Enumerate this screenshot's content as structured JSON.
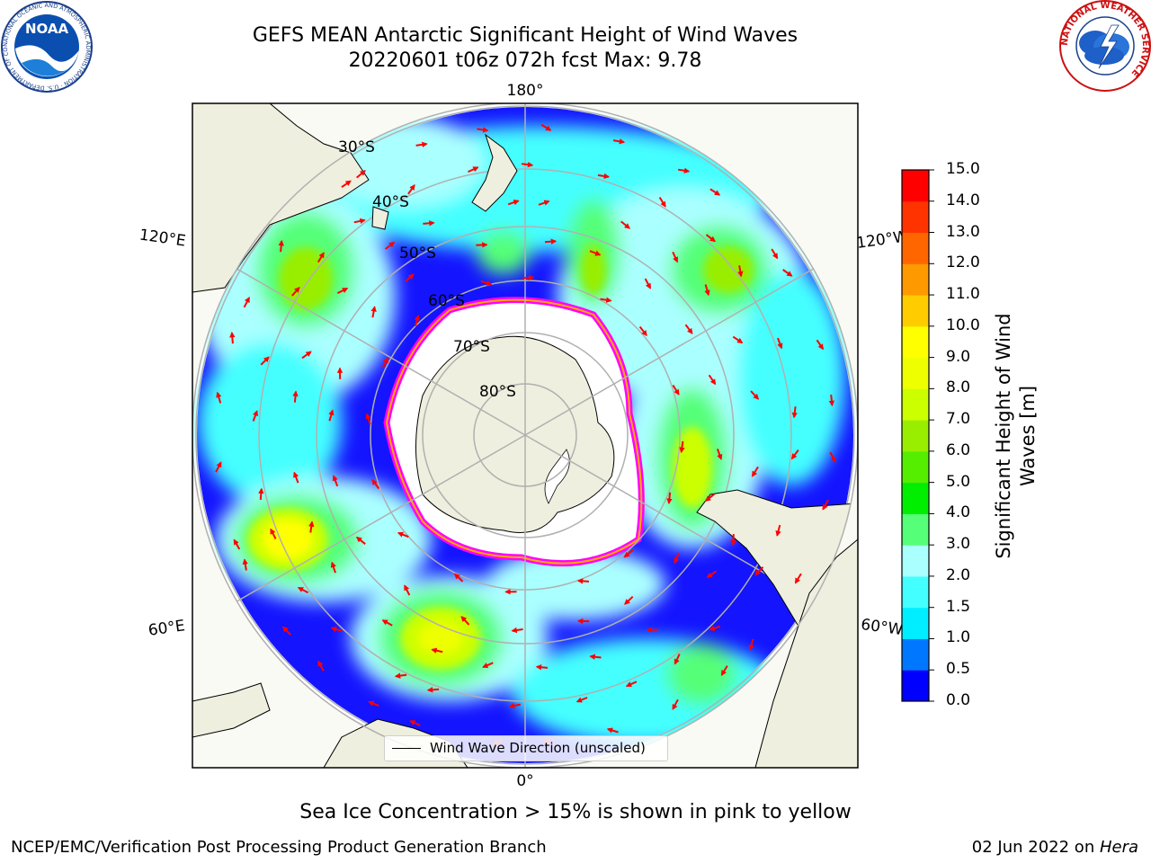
{
  "title": {
    "line1": "GEFS MEAN Antarctic Significant Height of Wind Waves",
    "line2": "20220601 t06z 072h fcst   Max: 9.78"
  },
  "logos": {
    "noaa": {
      "text": "NOAA",
      "ring_text": "NATIONAL OCEANIC AND ATMOSPHERIC ADMINISTRATION · U.S. DEPARTMENT OF COMMERCE",
      "icon": "noaa-logo"
    },
    "nws": {
      "ring_text": "NATIONAL WEATHER SERVICE",
      "icon": "nws-logo"
    }
  },
  "map": {
    "projection": "south-polar-stereographic",
    "lat_labels": [
      "30°S",
      "40°S",
      "50°S",
      "60°S",
      "70°S",
      "80°S"
    ],
    "lon_labels": {
      "top": "180°",
      "bottom": "0°",
      "upper_left": "120°E",
      "upper_right": "120°W",
      "lower_left": "60°E",
      "lower_right": "60°W"
    },
    "legend_label": "Wind Wave Direction (unscaled)",
    "colors": {
      "land": "#efefdf",
      "sea_ice_edge": [
        "#ff00ff",
        "#ffaa00",
        "#ffff00"
      ],
      "vector": "#ff0000",
      "grid": "#b0b0b0"
    }
  },
  "colorbar": {
    "title_line1": "Significant Height of Wind",
    "title_line2": "Waves [m]",
    "ticks": [
      "0.0",
      "0.5",
      "1.0",
      "1.5",
      "2.0",
      "3.0",
      "4.0",
      "5.0",
      "6.0",
      "7.0",
      "8.0",
      "9.0",
      "10.0",
      "11.0",
      "12.0",
      "13.0",
      "14.0",
      "15.0"
    ],
    "colors": [
      "#0000ff",
      "#0077ff",
      "#00eeff",
      "#44ffff",
      "#aaffff",
      "#55ff77",
      "#00ee00",
      "#55ee00",
      "#99ee00",
      "#ccff00",
      "#eeff00",
      "#ffff00",
      "#ffcc00",
      "#ff9900",
      "#ff6600",
      "#ff3300",
      "#ff0000"
    ]
  },
  "caption": "Sea Ice Concentration > 15% is shown in pink to yellow",
  "footer": {
    "credit": "NCEP/EMC/Verification Post Processing Product Generation Branch",
    "date": "02 Jun 2022 on ",
    "machine": "Hera"
  }
}
